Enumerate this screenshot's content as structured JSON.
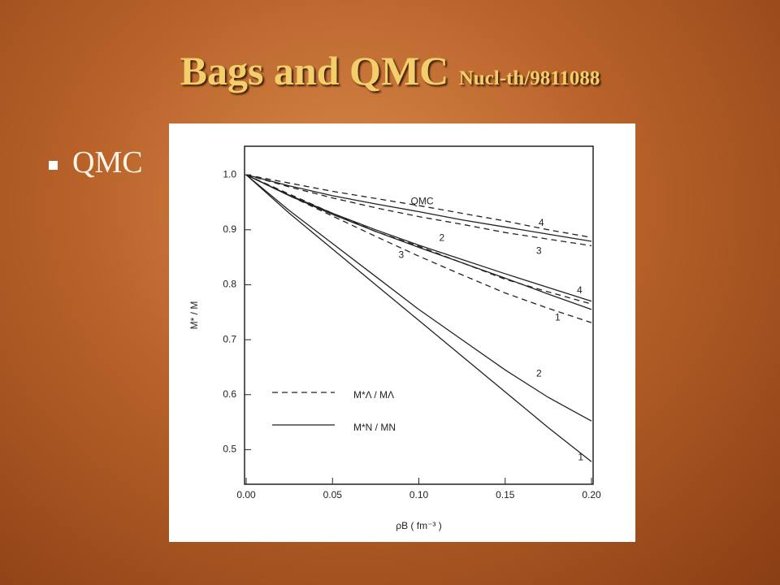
{
  "slide": {
    "title": "Bags and QMC",
    "title_ref": "Nucl-th/9811088",
    "bullets": [
      "QMC"
    ]
  },
  "chart_data": {
    "type": "line",
    "x_label": "ρB ( fm⁻³ )",
    "y_label": "M* / M",
    "x": [
      0,
      0.025,
      0.05,
      0.075,
      0.1,
      0.125,
      0.15,
      0.175,
      0.2
    ],
    "xlim": [
      0,
      0.2
    ],
    "ylim": [
      0.437,
      1.052
    ],
    "xticks": [
      {
        "value": 0,
        "label": "0.00"
      },
      0.05,
      {
        "value": 0.1,
        "label": "0.10"
      },
      0.15,
      {
        "value": 0.2,
        "label": "0.20"
      }
    ],
    "yticks": [
      {
        "value": 1,
        "label": "1.0"
      },
      0.9,
      0.8,
      0.7,
      0.6,
      0.5
    ],
    "color": "#222222",
    "legend": [
      {
        "label": "M*Λ / MΛ",
        "dashed": true
      },
      {
        "label": "M*N / MN",
        "dashed": false
      }
    ],
    "series": [
      {
        "label": "1",
        "dashed": false,
        "values": [
          1,
          0.93,
          0.865,
          0.8,
          0.735,
          0.67,
          0.605,
          0.54,
          0.478
        ]
      },
      {
        "label": "2",
        "dashed": false,
        "values": [
          1,
          0.935,
          0.875,
          0.815,
          0.755,
          0.7,
          0.645,
          0.595,
          0.552
        ]
      },
      {
        "label": "1",
        "dashed": true,
        "values": [
          1,
          0.962,
          0.925,
          0.888,
          0.852,
          0.818,
          0.785,
          0.757,
          0.731
        ]
      },
      {
        "label": "2",
        "dashed": true,
        "values": [
          1,
          0.965,
          0.93,
          0.897,
          0.87,
          0.84,
          0.81,
          0.787,
          0.765
        ]
      },
      {
        "label": "3",
        "dashed": false,
        "values": [
          1,
          0.962,
          0.928,
          0.897,
          0.868,
          0.84,
          0.812,
          0.783,
          0.755
        ]
      },
      {
        "label": "4",
        "dashed": false,
        "values": [
          1,
          0.963,
          0.93,
          0.9,
          0.872,
          0.846,
          0.82,
          0.795,
          0.77
        ]
      },
      {
        "label": "4",
        "dashed": true,
        "values": [
          1,
          0.985,
          0.97,
          0.957,
          0.944,
          0.93,
          0.916,
          0.9,
          0.886
        ]
      },
      {
        "label": "QMC",
        "dashed": false,
        "values": [
          1,
          0.98,
          0.962,
          0.947,
          0.933,
          0.918,
          0.905,
          0.892,
          0.879
        ]
      },
      {
        "label": "3",
        "dashed": true,
        "values": [
          1,
          0.978,
          0.958,
          0.94,
          0.924,
          0.91,
          0.895,
          0.883,
          0.871
        ]
      }
    ]
  }
}
